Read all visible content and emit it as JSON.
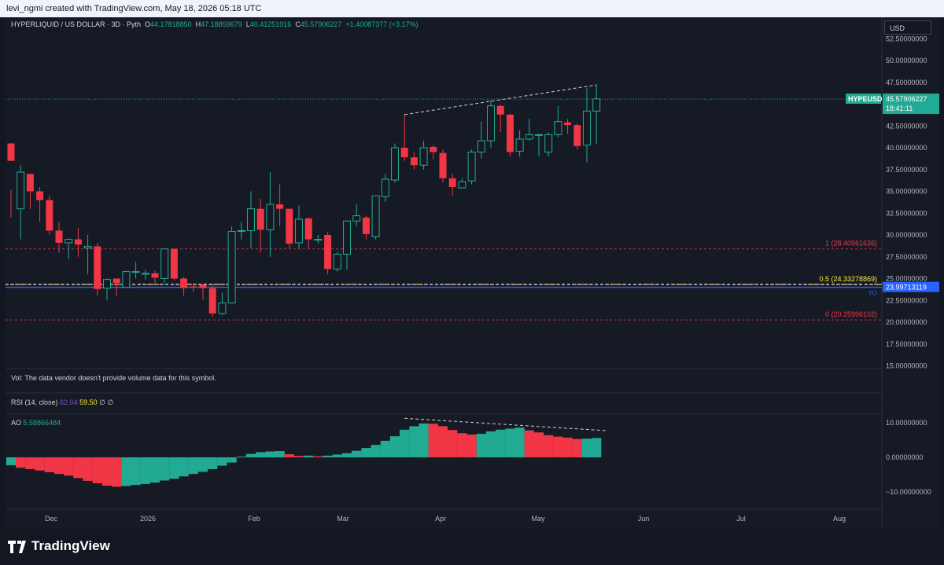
{
  "header": {
    "text": "levi_ngmi created with TradingView.com, May 18, 2026 05:18 UTC"
  },
  "symbol": {
    "title": "HYPERLIQUID / US DOLLAR · 3D · Pyth",
    "o_label": "O",
    "o": "44.17818850",
    "h_label": "H",
    "h": "47.18859679",
    "l_label": "L",
    "l": "40.41251016",
    "c_label": "C",
    "c": "45.57906227",
    "change": "+1.40087377 (+3.17%)"
  },
  "currency": "USD",
  "price_axis": {
    "ticks": [
      52.5,
      50,
      47.5,
      45,
      42.5,
      40,
      37.5,
      35,
      32.5,
      30,
      27.5,
      25,
      22.5,
      20,
      17.5,
      15
    ],
    "tick_labels": [
      "52.50000000",
      "50.00000000",
      "47.50000000",
      "45.00000000",
      "42.50000000",
      "40.00000000",
      "37.50000000",
      "35.00000000",
      "32.50000000",
      "30.00000000",
      "27.50000000",
      "25.00000000",
      "22.50000000",
      "20.00000000",
      "17.50000000",
      "15.00000000"
    ],
    "current_label": "HYPEUSD",
    "current_price": "45.57906227",
    "current_value": 45.57906227,
    "countdown": "18:41:11",
    "blue_line_value": 23.99713119,
    "blue_line_label": "23.99713119",
    "blue_line_tag": "YO"
  },
  "fib_levels": [
    {
      "value": 28.40561636,
      "label": "1 (28.40561636)",
      "color": "#f23645"
    },
    {
      "value": 24.33278869,
      "label": "0.5 (24.33278869)",
      "color": "#ffeb3b"
    },
    {
      "value": 20.25996102,
      "label": "0 (20.25996102)",
      "color": "#f23645"
    }
  ],
  "volume_note": "Vol: The data vendor doesn't provide volume data for this symbol.",
  "rsi": {
    "title": "RSI (14, close)",
    "v1": "62.04",
    "v2": "59.50",
    "v3": "∅ ∅"
  },
  "ao": {
    "title": "AO",
    "value": "5.58866484",
    "ticks": [
      10,
      0,
      -10
    ],
    "tick_labels": [
      "10.00000000",
      "0.00000000",
      "−10.00000000"
    ]
  },
  "time_axis": {
    "labels": [
      "Dec",
      "2026",
      "Feb",
      "Mar",
      "Apr",
      "May",
      "Jun",
      "Jul",
      "Aug"
    ]
  },
  "chart_data": {
    "type": "candlestick",
    "title": "HYPERLIQUID / US DOLLAR · 3D · Pyth",
    "ylim": [
      15,
      53
    ],
    "candles": [
      [
        40.5,
        38.5,
        35.2,
        32.0
      ],
      [
        33.0,
        37.2,
        38.0,
        29.5
      ],
      [
        37.0,
        35.0,
        36.9,
        33.0
      ],
      [
        35.0,
        34.0,
        35.5,
        31.5
      ],
      [
        34.0,
        30.5,
        34.5,
        30.0
      ],
      [
        30.5,
        29.1,
        31.5,
        28.0
      ],
      [
        29.1,
        29.5,
        29.6,
        27.2
      ],
      [
        29.5,
        28.9,
        30.8,
        27.5
      ],
      [
        28.5,
        28.7,
        30.0,
        25.5
      ],
      [
        28.7,
        23.8,
        29.1,
        23.0
      ],
      [
        23.9,
        24.9,
        25.0,
        22.5
      ],
      [
        25.0,
        24.5,
        24.5,
        23.0
      ],
      [
        24.0,
        25.8,
        25.9,
        24.0
      ],
      [
        25.8,
        25.8,
        26.9,
        25.0
      ],
      [
        25.5,
        25.6,
        26.0,
        24.9
      ],
      [
        25.6,
        25.1,
        25.9,
        24.5
      ],
      [
        25.0,
        28.4,
        28.4,
        24.5
      ],
      [
        28.4,
        25.0,
        28.4,
        24.8
      ],
      [
        25.0,
        23.9,
        25.2,
        23.0
      ],
      [
        24.1,
        24.0,
        24.5,
        23.5
      ],
      [
        24.3,
        23.9,
        24.4,
        22.6
      ],
      [
        23.9,
        21.0,
        24.3,
        20.6
      ],
      [
        21.0,
        22.2,
        23.4,
        20.8
      ],
      [
        22.2,
        30.4,
        31.0,
        22.2
      ],
      [
        30.5,
        30.5,
        31.5,
        29.5
      ],
      [
        30.5,
        33.0,
        35.0,
        28.5
      ],
      [
        33.0,
        30.6,
        34.2,
        28.0
      ],
      [
        30.6,
        33.5,
        37.2,
        27.5
      ],
      [
        33.5,
        33.0,
        35.8,
        31.0
      ],
      [
        33.0,
        29.0,
        33.0,
        28.5
      ],
      [
        29.1,
        31.8,
        33.4,
        28.5
      ],
      [
        31.9,
        29.5,
        32.0,
        28.5
      ],
      [
        29.5,
        29.5,
        30.0,
        29.0
      ],
      [
        30.0,
        26.1,
        30.3,
        25.5
      ],
      [
        26.1,
        27.8,
        28.0,
        25.8
      ],
      [
        27.8,
        31.6,
        31.6,
        26.0
      ],
      [
        31.6,
        32.2,
        33.5,
        31.0
      ],
      [
        32.0,
        30.1,
        32.2,
        29.5
      ],
      [
        29.8,
        34.5,
        34.5,
        29.5
      ],
      [
        34.4,
        36.4,
        37.0,
        33.8
      ],
      [
        36.3,
        40.0,
        40.5,
        36.0
      ],
      [
        40.0,
        38.9,
        43.8,
        38.5
      ],
      [
        38.9,
        38.0,
        39.5,
        37.5
      ],
      [
        38.0,
        40.0,
        40.8,
        37.5
      ],
      [
        40.1,
        39.5,
        40.3,
        38.7
      ],
      [
        39.4,
        36.5,
        39.8,
        36.0
      ],
      [
        36.5,
        35.5,
        37.0,
        34.5
      ],
      [
        35.4,
        36.1,
        36.5,
        35.5
      ],
      [
        36.2,
        39.5,
        39.8,
        35.8
      ],
      [
        39.5,
        40.8,
        43.0,
        38.8
      ],
      [
        40.8,
        44.8,
        45.5,
        40.0
      ],
      [
        44.8,
        43.8,
        44.9,
        41.8
      ],
      [
        43.8,
        39.5,
        43.9,
        39.0
      ],
      [
        39.6,
        41.0,
        42.0,
        39.0
      ],
      [
        41.0,
        41.5,
        43.3,
        40.8
      ],
      [
        41.5,
        41.5,
        41.6,
        39.0
      ],
      [
        39.5,
        41.5,
        41.8,
        39.0
      ],
      [
        41.5,
        43.0,
        44.8,
        41.2
      ],
      [
        42.9,
        42.6,
        43.3,
        41.6
      ],
      [
        42.6,
        40.2,
        42.8,
        39.8
      ],
      [
        40.3,
        44.2,
        46.8,
        38.3
      ],
      [
        44.2,
        45.6,
        47.2,
        40.4
      ]
    ],
    "ao_values": [
      -2.3,
      -3.0,
      -3.4,
      -3.8,
      -4.3,
      -4.8,
      -5.3,
      -6.0,
      -6.8,
      -7.5,
      -8.2,
      -8.5,
      -8.3,
      -8.0,
      -7.7,
      -7.3,
      -6.7,
      -6.2,
      -5.5,
      -4.8,
      -4.2,
      -3.4,
      -2.4,
      -1.5,
      0.2,
      1.0,
      1.5,
      1.7,
      1.8,
      0.9,
      0.4,
      0.5,
      0.3,
      0.5,
      0.8,
      1.2,
      1.9,
      2.7,
      3.6,
      4.8,
      6.1,
      8.0,
      9.0,
      9.8,
      9.7,
      9.0,
      7.9,
      7.0,
      6.6,
      6.8,
      7.5,
      8.0,
      8.3,
      8.6,
      7.8,
      7.2,
      6.4,
      6.0,
      5.7,
      5.3,
      5.4,
      5.6
    ],
    "trendline_price": [
      [
        43.8,
        47.2
      ]
    ],
    "trendline_ao": [
      [
        11.3,
        7.7
      ]
    ]
  }
}
